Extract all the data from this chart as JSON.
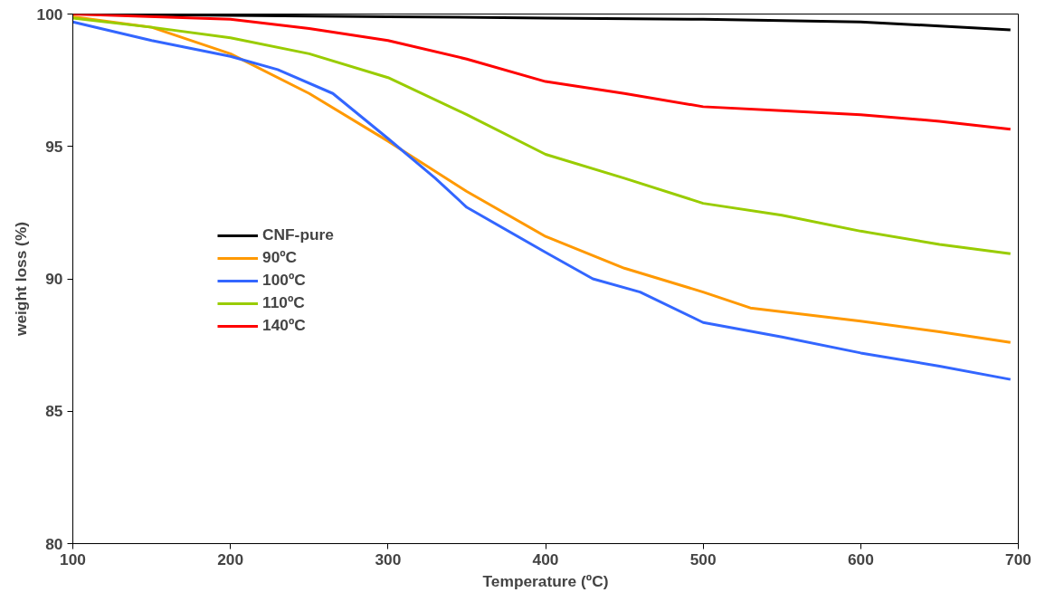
{
  "chart_data": {
    "type": "line",
    "xlabel": "Temperature (ºC)",
    "ylabel": "weight loss (%)",
    "xlim": [
      100,
      700
    ],
    "ylim": [
      80,
      100
    ],
    "xticks": [
      100,
      200,
      300,
      400,
      500,
      600,
      700
    ],
    "yticks": [
      80,
      85,
      90,
      95,
      100
    ],
    "grid": false,
    "legend": "left",
    "marker": "none",
    "line_style": "solid",
    "series": [
      {
        "name": "CNF-pure",
        "color": "#000000",
        "x": [
          100,
          200,
          300,
          400,
          500,
          600,
          650,
          695
        ],
        "values": [
          100.0,
          99.95,
          99.9,
          99.85,
          99.8,
          99.7,
          99.55,
          99.4
        ]
      },
      {
        "name": "90ºC",
        "color": "#ff9900",
        "x": [
          100,
          150,
          200,
          250,
          300,
          350,
          400,
          450,
          500,
          530,
          600,
          650,
          695
        ],
        "values": [
          99.9,
          99.5,
          98.5,
          97.0,
          95.2,
          93.3,
          91.6,
          90.4,
          89.5,
          88.9,
          88.4,
          88.0,
          87.6
        ]
      },
      {
        "name": "100ºC",
        "color": "#3366ff",
        "x": [
          100,
          150,
          200,
          230,
          265,
          300,
          330,
          350,
          400,
          430,
          460,
          500,
          550,
          600,
          650,
          695
        ],
        "values": [
          99.7,
          99.0,
          98.4,
          97.9,
          97.0,
          95.3,
          93.8,
          92.7,
          91.0,
          90.0,
          89.5,
          88.35,
          87.8,
          87.2,
          86.7,
          86.2
        ]
      },
      {
        "name": "110ºC",
        "color": "#99cc00",
        "x": [
          100,
          150,
          200,
          250,
          300,
          350,
          400,
          450,
          500,
          550,
          600,
          650,
          695
        ],
        "values": [
          99.85,
          99.5,
          99.1,
          98.5,
          97.6,
          96.2,
          94.7,
          93.8,
          92.85,
          92.4,
          91.8,
          91.3,
          90.95
        ]
      },
      {
        "name": "140ºC",
        "color": "#ff0000",
        "x": [
          100,
          200,
          250,
          300,
          350,
          400,
          450,
          500,
          550,
          600,
          650,
          695
        ],
        "values": [
          100.0,
          99.8,
          99.45,
          99.0,
          98.3,
          97.45,
          97.0,
          96.5,
          96.35,
          96.2,
          95.95,
          95.65
        ]
      }
    ]
  }
}
